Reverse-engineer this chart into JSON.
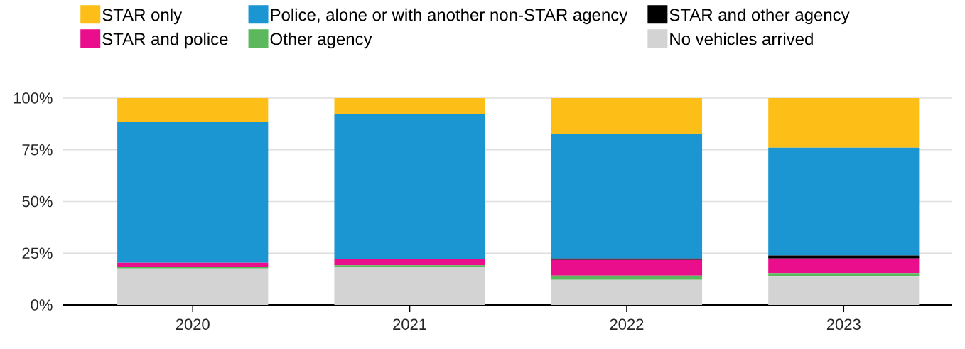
{
  "chart_data": {
    "type": "bar",
    "stacked": true,
    "categories": [
      "2020",
      "2021",
      "2022",
      "2023"
    ],
    "series": [
      {
        "name": "No vehicles arrived",
        "color": "#d3d3d3",
        "values": [
          17.6,
          18.3,
          12.1,
          13.7
        ]
      },
      {
        "name": "Other agency",
        "color": "#5cb85c",
        "values": [
          0.9,
          0.9,
          2.1,
          1.7
        ]
      },
      {
        "name": "STAR and police",
        "color": "#eb0e8c",
        "values": [
          1.9,
          2.8,
          7.5,
          7.0
        ]
      },
      {
        "name": "STAR and other agency",
        "color": "#000000",
        "values": [
          0,
          0,
          0.7,
          1.5
        ]
      },
      {
        "name": "Police, alone or with another non-STAR agency",
        "color": "#1b96d3",
        "values": [
          68.0,
          70.1,
          60.1,
          52.1
        ]
      },
      {
        "name": "STAR only",
        "color": "#fdbf17",
        "values": [
          11.6,
          7.9,
          17.5,
          24.0
        ]
      }
    ],
    "ylim": [
      0,
      100
    ],
    "yticks": [
      {
        "value": 0,
        "label": "0%"
      },
      {
        "value": 25,
        "label": "25%"
      },
      {
        "value": 50,
        "label": "50%"
      },
      {
        "value": 75,
        "label": "75%"
      },
      {
        "value": 100,
        "label": "100%"
      }
    ],
    "grid": "y",
    "legend": "top"
  }
}
